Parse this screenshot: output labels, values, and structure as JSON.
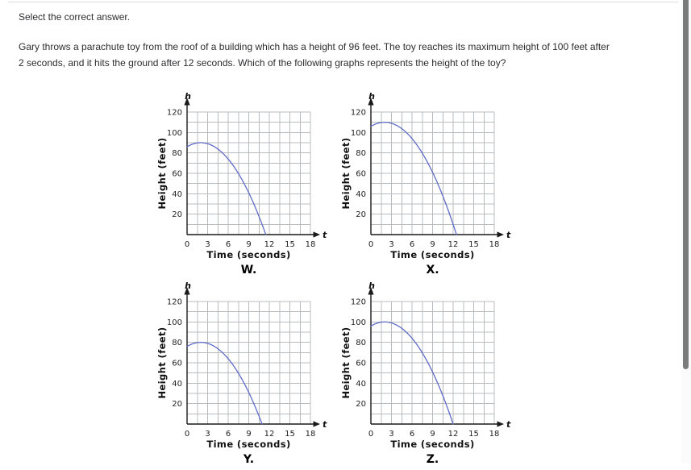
{
  "page": {
    "prompt": "Select the correct answer.",
    "question_lines": [
      "Gary throws a parachute toy from the roof of a building which has a height of 96 feet. The toy reaches its maximum height of 100 feet after",
      "2 seconds, and it hits the ground after 12 seconds. Which of the following graphs represents the height of the toy?"
    ]
  },
  "colors": {
    "curve": "#5f6cc5",
    "grid": "#b9bcbf",
    "axis": "#1a1a1a",
    "text": "#2d2d30",
    "scrollbar_thumb": "#7b7b7b",
    "scrollbar_track": "#fbfbfb",
    "top_border": "#dcdcdc"
  },
  "chart_data": [
    {
      "type": "line",
      "label": "W.",
      "xlabel": "Time (seconds)",
      "ylabel": "Height (feet)",
      "x_axis_symbol": "t",
      "y_axis_symbol": "h",
      "x_ticks": [
        0,
        3,
        6,
        9,
        12,
        15,
        18
      ],
      "y_ticks": [
        20,
        40,
        60,
        80,
        100,
        120
      ],
      "xlim": [
        0,
        18
      ],
      "ylim": [
        0,
        120
      ],
      "grid": true,
      "curve": {
        "equation": "h = 90 - (t - 2)^2",
        "vertex_t": 2,
        "vertex_h": 90,
        "start_h": 86,
        "ground_t": 11.49,
        "points": [
          [
            0,
            86
          ],
          [
            1,
            89
          ],
          [
            2,
            90
          ],
          [
            3,
            89
          ],
          [
            4,
            86
          ],
          [
            5,
            81
          ],
          [
            6,
            74
          ],
          [
            7,
            65
          ],
          [
            8,
            54
          ],
          [
            9,
            41
          ],
          [
            10,
            26
          ],
          [
            11,
            9
          ],
          [
            11.49,
            0
          ]
        ]
      }
    },
    {
      "type": "line",
      "label": "X.",
      "xlabel": "Time (seconds)",
      "ylabel": "Height (feet)",
      "x_axis_symbol": "t",
      "y_axis_symbol": "h",
      "x_ticks": [
        0,
        3,
        6,
        9,
        12,
        15,
        18
      ],
      "y_ticks": [
        20,
        40,
        60,
        80,
        100,
        120
      ],
      "xlim": [
        0,
        18
      ],
      "ylim": [
        0,
        120
      ],
      "grid": true,
      "curve": {
        "equation": "h = 110 - (t - 2)^2",
        "vertex_t": 2,
        "vertex_h": 110,
        "start_h": 106,
        "ground_t": 12.49,
        "points": [
          [
            0,
            106
          ],
          [
            1,
            109
          ],
          [
            2,
            110
          ],
          [
            3,
            109
          ],
          [
            4,
            106
          ],
          [
            5,
            101
          ],
          [
            6,
            94
          ],
          [
            7,
            85
          ],
          [
            8,
            74
          ],
          [
            9,
            61
          ],
          [
            10,
            46
          ],
          [
            11,
            29
          ],
          [
            12,
            10
          ],
          [
            12.49,
            0
          ]
        ]
      }
    },
    {
      "type": "line",
      "label": "Y.",
      "xlabel": "Time (seconds)",
      "ylabel": "Height (feet)",
      "x_axis_symbol": "t",
      "y_axis_symbol": "h",
      "x_ticks": [
        0,
        3,
        6,
        9,
        12,
        15,
        18
      ],
      "y_ticks": [
        20,
        40,
        60,
        80,
        100,
        120
      ],
      "xlim": [
        0,
        18
      ],
      "ylim": [
        0,
        120
      ],
      "grid": true,
      "curve": {
        "equation": "h = 80 - (t - 2)^2",
        "vertex_t": 2,
        "vertex_h": 80,
        "start_h": 76,
        "ground_t": 10.94,
        "points": [
          [
            0,
            76
          ],
          [
            1,
            79
          ],
          [
            2,
            80
          ],
          [
            3,
            79
          ],
          [
            4,
            76
          ],
          [
            5,
            71
          ],
          [
            6,
            64
          ],
          [
            7,
            55
          ],
          [
            8,
            44
          ],
          [
            9,
            31
          ],
          [
            10,
            16
          ],
          [
            10.94,
            0
          ]
        ]
      }
    },
    {
      "type": "line",
      "label": "Z.",
      "xlabel": "Time (seconds)",
      "ylabel": "Height (feet)",
      "x_axis_symbol": "t",
      "y_axis_symbol": "h",
      "x_ticks": [
        0,
        3,
        6,
        9,
        12,
        15,
        18
      ],
      "y_ticks": [
        20,
        40,
        60,
        80,
        100,
        120
      ],
      "xlim": [
        0,
        18
      ],
      "ylim": [
        0,
        120
      ],
      "grid": true,
      "curve": {
        "equation": "h = 100 - (t - 2)^2",
        "vertex_t": 2,
        "vertex_h": 100,
        "start_h": 96,
        "ground_t": 12,
        "points": [
          [
            0,
            96
          ],
          [
            1,
            99
          ],
          [
            2,
            100
          ],
          [
            3,
            99
          ],
          [
            4,
            96
          ],
          [
            5,
            91
          ],
          [
            6,
            84
          ],
          [
            7,
            75
          ],
          [
            8,
            64
          ],
          [
            9,
            51
          ],
          [
            10,
            36
          ],
          [
            11,
            19
          ],
          [
            12,
            0
          ]
        ]
      }
    }
  ]
}
